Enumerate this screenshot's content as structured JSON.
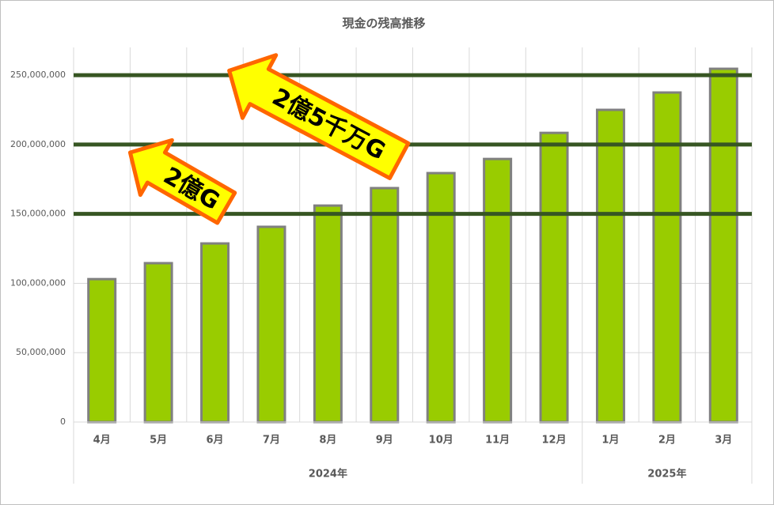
{
  "chart_data": {
    "type": "bar",
    "title": "現金の残高推移",
    "categories": [
      "4月",
      "5月",
      "6月",
      "7月",
      "8月",
      "9月",
      "10月",
      "11月",
      "12月",
      "1月",
      "2月",
      "3月"
    ],
    "groups": [
      {
        "label": "2024年",
        "count": 9
      },
      {
        "label": "2025年",
        "count": 3
      }
    ],
    "values": [
      103000000,
      114500000,
      128700000,
      140700000,
      156000000,
      168600000,
      179400000,
      189600000,
      208400000,
      225000000,
      237500000,
      254600000
    ],
    "color": "#99cc00",
    "edge_color": "#808080",
    "ylim": [
      0,
      270000000
    ],
    "yticks": [
      0,
      {
        "value": 50000000,
        "label": "50,000,000"
      },
      {
        "value": 100000000,
        "label": "100,000,000"
      },
      {
        "value": 150000000,
        "label": "150,000,000"
      },
      {
        "value": 200000000,
        "label": "200,000,000"
      },
      {
        "value": 250000000,
        "label": "250,000,000"
      }
    ],
    "grid": true,
    "reference_lines": {
      "color": "#375623",
      "values": [
        150000000,
        200000000,
        250000000
      ]
    },
    "annotations": [
      "2億G",
      "2億5千万G"
    ]
  }
}
